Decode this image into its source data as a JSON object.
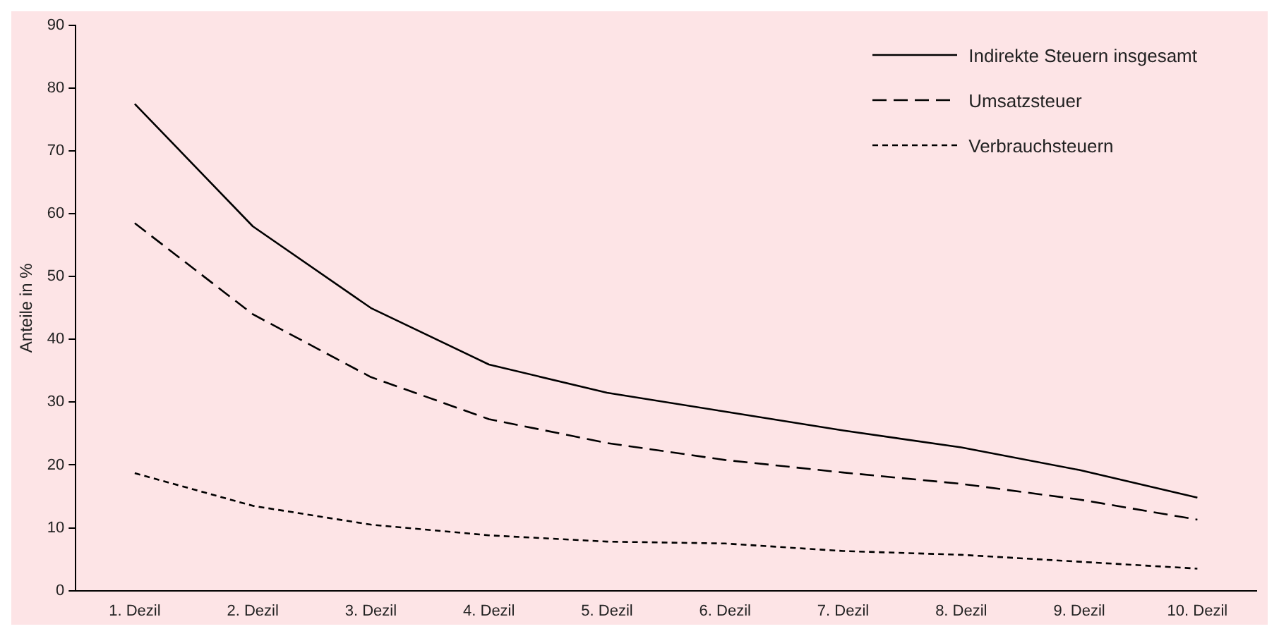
{
  "chart_data": {
    "type": "line",
    "ylabel": "Anteile in %",
    "categories": [
      "1. Dezil",
      "2. Dezil",
      "3. Dezil",
      "4. Dezil",
      "5. Dezil",
      "6. Dezil",
      "7. Dezil",
      "8. Dezil",
      "9. Dezil",
      "10. Dezil"
    ],
    "series": [
      {
        "name": "Indirekte Steuern insgesamt",
        "color": "#000000",
        "line_style": "solid",
        "values": [
          77.5,
          58,
          45,
          36,
          31.5,
          28.5,
          25.5,
          22.8,
          19.2,
          14.8
        ]
      },
      {
        "name": "Umsatzsteuer",
        "color": "#000000",
        "line_style": "dashed",
        "values": [
          58.5,
          44,
          34,
          27.3,
          23.5,
          20.8,
          18.8,
          17,
          14.5,
          11.3
        ]
      },
      {
        "name": "Verbrauchsteuern",
        "color": "#000000",
        "line_style": "dotted",
        "values": [
          18.7,
          13.5,
          10.5,
          8.8,
          7.8,
          7.5,
          6.3,
          5.7,
          4.6,
          3.5
        ]
      }
    ],
    "ylim": [
      0,
      90
    ],
    "yticks": [
      0,
      10,
      20,
      30,
      40,
      50,
      60,
      70,
      80,
      90
    ],
    "grid": false,
    "legend": "top right",
    "marker": "none"
  }
}
